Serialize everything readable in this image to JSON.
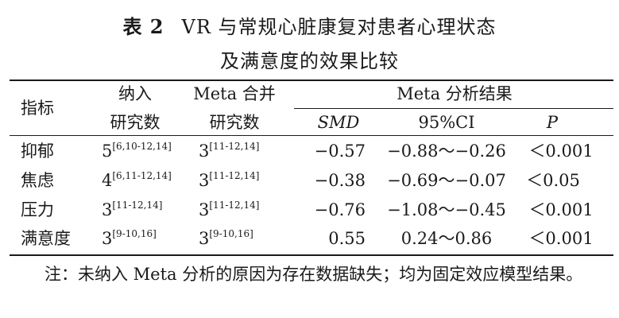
{
  "title": {
    "label": "表 2",
    "line1": "VR 与常规心脏康复对患者心理状态",
    "line2": "及满意度的效果比较"
  },
  "headers": {
    "indicator": "指标",
    "included_1": "纳入",
    "included_2": "研究数",
    "merged_1": "Meta 合并",
    "merged_2": "研究数",
    "meta_result": "Meta 分析结果",
    "smd": "SMD",
    "ci": "95%CI",
    "p": "P"
  },
  "rows": [
    {
      "indicator": "抑郁",
      "included_n": "5",
      "included_ref": "[6,10-12,14]",
      "merged_n": "3",
      "merged_ref": "[11-12,14]",
      "smd": "−0.57",
      "ci": "−0.88～−0.26",
      "p": "＜0.001"
    },
    {
      "indicator": "焦虑",
      "included_n": "4",
      "included_ref": "[6,11-12,14]",
      "merged_n": "3",
      "merged_ref": "[11-12,14]",
      "smd": "−0.38",
      "ci": "−0.69～−0.07",
      "p": "＜0.05"
    },
    {
      "indicator": "压力",
      "included_n": "3",
      "included_ref": "[11-12,14]",
      "merged_n": "3",
      "merged_ref": "[11-12,14]",
      "smd": "−0.76",
      "ci": "−1.08～−0.45",
      "p": "＜0.001"
    },
    {
      "indicator": "满意度",
      "included_n": "3",
      "included_ref": "[9-10,16]",
      "merged_n": "3",
      "merged_ref": "[9-10,16]",
      "smd": "0.55",
      "ci": "0.24～0.86",
      "p": "＜0.001"
    }
  ],
  "note": "注：未纳入 Meta 分析的原因为存在数据缺失；均为固定效应模型结果。"
}
